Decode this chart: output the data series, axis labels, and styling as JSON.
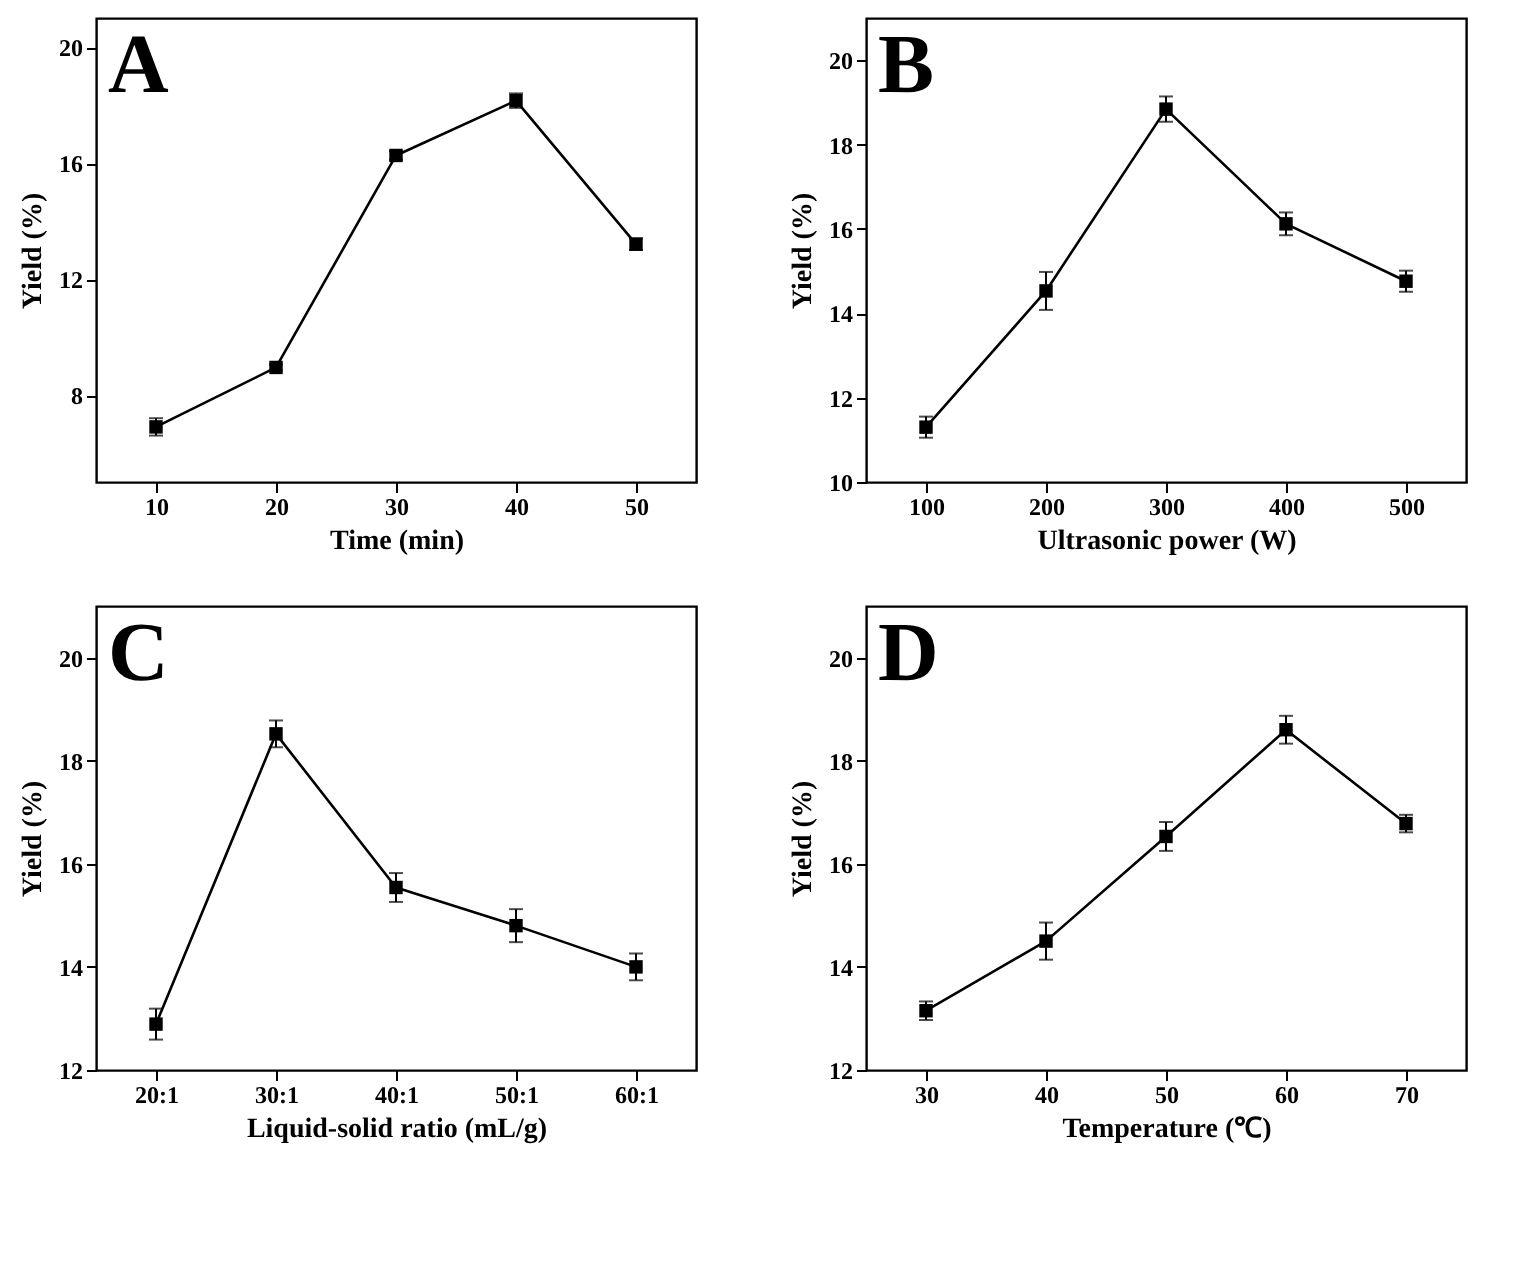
{
  "chart_data": [
    {
      "type": "line",
      "annotations": [
        "A"
      ],
      "xlabel": "Time (min)",
      "ylabel": "Yield (%)",
      "x": [
        10,
        20,
        30,
        40,
        50
      ],
      "values": [
        6.9,
        8.95,
        16.26,
        18.15,
        13.2
      ],
      "errors": [
        0.3,
        0.1,
        0.15,
        0.25,
        0.2
      ],
      "color": "#000000",
      "marker": "square",
      "xlim": [
        5,
        55
      ],
      "xticks": [
        10,
        20,
        30,
        40,
        50
      ],
      "ylim": [
        5,
        21
      ],
      "yticks": [
        8,
        12,
        16,
        20
      ]
    },
    {
      "type": "line",
      "annotations": [
        "B"
      ],
      "xlabel": "Ultrasonic power (W)",
      "ylabel": "Yield (%)",
      "x": [
        100,
        200,
        300,
        400,
        500
      ],
      "values": [
        11.3,
        14.53,
        18.84,
        16.12,
        14.76
      ],
      "errors": [
        0.25,
        0.45,
        0.3,
        0.27,
        0.25
      ],
      "color": "#000000",
      "marker": "square",
      "xlim": [
        50,
        550
      ],
      "xticks": [
        100,
        200,
        300,
        400,
        500
      ],
      "ylim": [
        10,
        21
      ],
      "yticks": [
        10,
        12,
        14,
        16,
        18,
        20
      ]
    },
    {
      "type": "line",
      "annotations": [
        "C"
      ],
      "xlabel": "Liquid-solid ratio (mL/g)",
      "ylabel": "Yield (%)",
      "categories": [
        "20:1",
        "30:1",
        "40:1",
        "50:1",
        "60:1"
      ],
      "values": [
        12.89,
        18.52,
        15.54,
        14.8,
        14.0
      ],
      "errors": [
        0.3,
        0.26,
        0.28,
        0.32,
        0.26
      ],
      "color": "#000000",
      "marker": "square",
      "ylim": [
        12,
        21
      ],
      "yticks": [
        12,
        14,
        16,
        18,
        20
      ]
    },
    {
      "type": "line",
      "annotations": [
        "D"
      ],
      "xlabel": "Temperature (℃)",
      "ylabel": "Yield (%)",
      "x": [
        30,
        40,
        50,
        60,
        70
      ],
      "values": [
        13.15,
        14.5,
        16.53,
        18.6,
        16.78
      ],
      "errors": [
        0.18,
        0.36,
        0.28,
        0.27,
        0.17
      ],
      "color": "#000000",
      "marker": "square",
      "xlim": [
        25,
        75
      ],
      "xticks": [
        30,
        40,
        50,
        60,
        70
      ],
      "ylim": [
        12,
        21
      ],
      "yticks": [
        12,
        14,
        16,
        18,
        20
      ]
    }
  ]
}
